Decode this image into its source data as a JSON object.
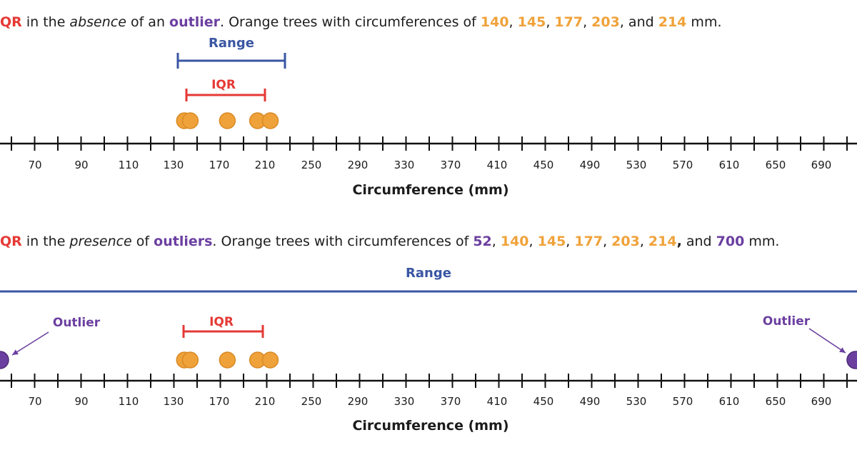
{
  "caption_top": {
    "lead": "QR",
    "t1": " in the ",
    "em": "absence",
    "t2": " of an ",
    "outlier": "outlier",
    "t3": ". Orange trees with circumferences of ",
    "v1": "140",
    "s1": ", ",
    "v2": "145",
    "s2": ", ",
    "v3": "177",
    "s3": ", ",
    "v4": "203",
    "s4": ", and ",
    "v5": "214",
    "tail": " mm."
  },
  "caption_bottom": {
    "lead": "QR",
    "t1": " in the ",
    "em": "presence",
    "t2": " of ",
    "outlier": "outliers",
    "t3": ". Orange trees with circumferences of ",
    "v0": "52",
    "s0": ", ",
    "v1": "140",
    "s1": ", ",
    "v2": "145",
    "s2": ", ",
    "v3": "177",
    "s3": ", ",
    "v4": "203",
    "s4": ", ",
    "v5": "214",
    "s5": ",",
    "s6": " and ",
    "v6": "700",
    "tail": " mm."
  },
  "tick_labels": [
    "70",
    "90",
    "110",
    "130",
    "170",
    "210",
    "250",
    "290",
    "330",
    "370",
    "410",
    "450",
    "490",
    "530",
    "570",
    "610",
    "650",
    "690"
  ],
  "axis_title": "Circumference (mm)",
  "range_label": "Range",
  "iqr_label": "IQR",
  "outlier_label": "Outlier",
  "colors": {
    "orange": "#f0a23a",
    "purple": "#6b3fa0",
    "range_blue": "#3a56a3",
    "iqr_red": "#e53935",
    "axis": "#111111"
  },
  "chart_data": [
    {
      "type": "scatter",
      "values": [
        140,
        145,
        177,
        203,
        214
      ],
      "xlabel": "Circumference (mm)",
      "range_label": "Range",
      "iqr_label": "IQR"
    },
    {
      "type": "scatter",
      "values": [
        52,
        140,
        145,
        177,
        203,
        214,
        700
      ],
      "outliers": [
        52,
        700
      ],
      "xlabel": "Circumference (mm)",
      "range_label": "Range",
      "iqr_label": "IQR"
    }
  ]
}
